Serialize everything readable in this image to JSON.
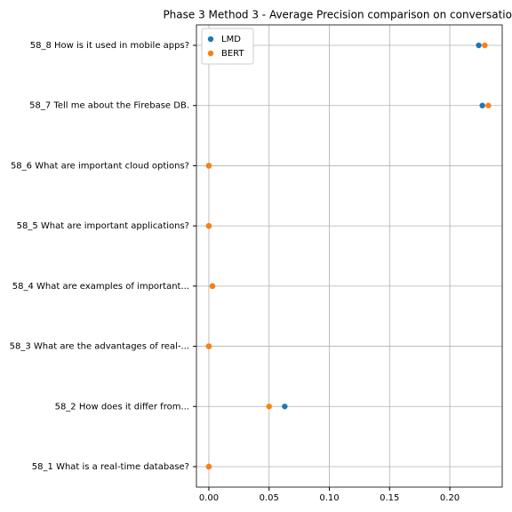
{
  "chart_data": {
    "type": "scatter",
    "orientation": "horizontal",
    "title": "Phase 3 Method 3 - Average Precision comparison on conversatio",
    "categories": [
      "58_1 What is a real-time database?",
      "58_2 How does it differ from...",
      "58_3 What are the advantages of real-...",
      "58_4 What are examples of important...",
      "58_5 What are important applications?",
      "58_6 What are important cloud options?",
      "58_7 Tell me about the Firebase DB.",
      "58_8 How is it used in mobile apps?"
    ],
    "series": [
      {
        "name": "LMD",
        "color": "#1f77b4",
        "values": [
          0,
          0.063,
          0,
          0.003,
          0,
          0,
          0.227,
          0.224
        ]
      },
      {
        "name": "BERT",
        "color": "#ff7f0e",
        "values": [
          0,
          0.05,
          0,
          0.003,
          0,
          0,
          0.232,
          0.229
        ]
      }
    ],
    "xlim": [
      -0.0103,
      0.2435
    ],
    "xticks": [
      {
        "value": 0,
        "label": "0.00"
      },
      {
        "value": 0.05,
        "label": "0.05"
      },
      {
        "value": 0.1,
        "label": "0.10"
      },
      {
        "value": 0.15,
        "label": "0.15"
      },
      {
        "value": 0.2,
        "label": "0.20"
      }
    ],
    "grid": true,
    "legend": "upper-left"
  }
}
